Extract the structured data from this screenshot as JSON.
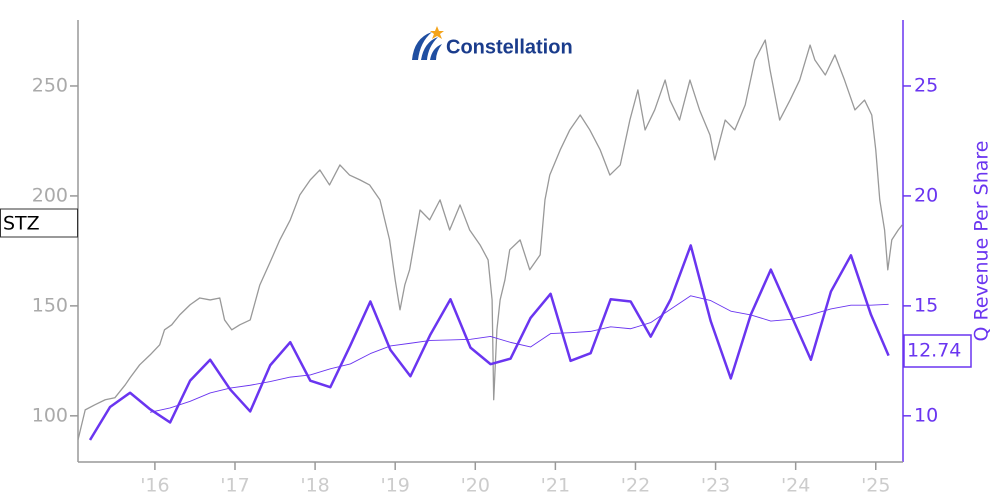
{
  "logo_text": "Constellation",
  "chart_data": {
    "type": "line",
    "ylabel": null,
    "y2label": "Q Revenue Per Share",
    "xlim": [
      2015.04,
      2025.34
    ],
    "xticks": [
      {
        "value": 2016,
        "label": "'16"
      },
      {
        "value": 2017,
        "label": "'17"
      },
      {
        "value": 2018,
        "label": "'18"
      },
      {
        "value": 2019,
        "label": "'19"
      },
      {
        "value": 2020,
        "label": "'20"
      },
      {
        "value": 2021,
        "label": "'21"
      },
      {
        "value": 2022,
        "label": "'22"
      },
      {
        "value": 2023,
        "label": "'23"
      },
      {
        "value": 2024,
        "label": "'24"
      },
      {
        "value": 2025,
        "label": "'25"
      }
    ],
    "ylim": [
      79,
      280
    ],
    "yticks": [
      100,
      150,
      200,
      250
    ],
    "y2lim": [
      7.9,
      28
    ],
    "y2ticks": [
      10,
      15,
      20,
      25
    ],
    "series": [
      {
        "name": "STZ",
        "color": "#999999",
        "axis": "y",
        "x": [
          2015.04,
          2015.13,
          2015.25,
          2015.38,
          2015.5,
          2015.63,
          2015.69,
          2015.81,
          2015.94,
          2016.06,
          2016.12,
          2016.21,
          2016.31,
          2016.44,
          2016.56,
          2016.69,
          2016.81,
          2016.87,
          2016.96,
          2017.06,
          2017.19,
          2017.31,
          2017.44,
          2017.56,
          2017.69,
          2017.81,
          2017.94,
          2018.06,
          2018.18,
          2018.31,
          2018.43,
          2018.56,
          2018.68,
          2018.81,
          2018.93,
          2019.0,
          2019.06,
          2019.12,
          2019.18,
          2019.31,
          2019.43,
          2019.56,
          2019.68,
          2019.81,
          2019.93,
          2020.06,
          2020.16,
          2020.21,
          2020.23,
          2020.27,
          2020.31,
          2020.37,
          2020.43,
          2020.56,
          2020.68,
          2020.81,
          2020.87,
          2020.93,
          2021.06,
          2021.18,
          2021.31,
          2021.43,
          2021.56,
          2021.68,
          2021.81,
          2021.93,
          2022.03,
          2022.12,
          2022.24,
          2022.37,
          2022.43,
          2022.55,
          2022.68,
          2022.8,
          2022.93,
          2022.99,
          2023.12,
          2023.24,
          2023.37,
          2023.49,
          2023.62,
          2023.68,
          2023.8,
          2023.93,
          2024.05,
          2024.18,
          2024.24,
          2024.37,
          2024.49,
          2024.61,
          2024.74,
          2024.86,
          2024.95,
          2025.0,
          2025.05,
          2025.11,
          2025.15,
          2025.2,
          2025.28,
          2025.33
        ],
        "values": [
          89.1,
          102.7,
          105,
          107.3,
          108.2,
          114.1,
          117.3,
          123.2,
          127.7,
          132.3,
          139.1,
          141.4,
          145.9,
          150.5,
          153.6,
          152.7,
          153.6,
          143.6,
          139.1,
          141.4,
          143.6,
          159.5,
          170,
          180,
          189.1,
          200.5,
          207.3,
          211.8,
          205,
          214.1,
          209.5,
          207.3,
          205,
          198.2,
          180,
          161.8,
          148.2,
          159.5,
          166.4,
          193.6,
          189.1,
          198.2,
          184.5,
          195.9,
          184.5,
          177.7,
          170.9,
          152.7,
          107.3,
          139.1,
          152.7,
          161.8,
          175.5,
          180,
          166.4,
          173.2,
          198.2,
          209.5,
          220.9,
          230,
          236.8,
          230,
          220.9,
          209.5,
          214.1,
          234.5,
          248.2,
          230,
          239.1,
          252.7,
          243.6,
          234.5,
          252.7,
          239.1,
          227.7,
          216.4,
          234.5,
          230,
          241.4,
          261.8,
          270.9,
          257.3,
          234.5,
          243.6,
          252.7,
          268.6,
          261.8,
          255,
          264.1,
          252.7,
          239.1,
          243.6,
          236.8,
          220.9,
          198.2,
          184.5,
          166.4,
          180,
          184.5,
          186.8
        ]
      },
      {
        "color": "#6a35f0",
        "axis": "y2",
        "x": [
          2015.19,
          2015.44,
          2015.69,
          2015.94,
          2016.19,
          2016.44,
          2016.69,
          2016.94,
          2017.19,
          2017.44,
          2017.69,
          2017.94,
          2018.19,
          2018.44,
          2018.69,
          2018.94,
          2019.19,
          2019.44,
          2019.69,
          2019.94,
          2020.19,
          2020.44,
          2020.69,
          2020.94,
          2021.19,
          2021.44,
          2021.69,
          2021.94,
          2022.19,
          2022.44,
          2022.69,
          2022.94,
          2023.19,
          2023.44,
          2023.69,
          2023.94,
          2024.19,
          2024.44,
          2024.69,
          2024.94,
          2025.16
        ],
        "values": [
          8.9,
          10.4,
          11.05,
          10.3,
          9.7,
          11.6,
          12.55,
          11.2,
          10.2,
          12.3,
          13.35,
          11.6,
          11.3,
          13.2,
          15.2,
          13.0,
          11.8,
          13.7,
          15.3,
          13.1,
          12.35,
          12.6,
          14.45,
          15.55,
          12.5,
          12.85,
          15.3,
          15.2,
          13.6,
          15.3,
          17.75,
          14.3,
          11.7,
          14.6,
          16.65,
          14.6,
          12.55,
          15.65,
          17.3,
          14.6,
          12.74
        ]
      },
      {
        "color": "#6a35f0",
        "axis": "y2",
        "x": [
          2015.19,
          2015.44,
          2015.69,
          2015.94,
          2016.19,
          2016.44,
          2016.69,
          2016.94,
          2017.19,
          2017.44,
          2017.69,
          2017.94,
          2018.19,
          2018.44,
          2018.69,
          2018.94,
          2019.19,
          2019.44,
          2019.69,
          2019.94,
          2020.19,
          2020.44,
          2020.69,
          2020.94,
          2021.19,
          2021.44,
          2021.69,
          2021.94,
          2022.19,
          2022.44,
          2022.69,
          2022.94,
          2023.19,
          2023.44,
          2023.69,
          2023.94,
          2024.19,
          2024.44,
          2024.69,
          2024.94,
          2025.16
        ],
        "values": [
          null,
          null,
          null,
          10.16,
          10.36,
          10.66,
          11.04,
          11.26,
          11.39,
          11.56,
          11.76,
          11.86,
          12.14,
          12.36,
          12.83,
          13.18,
          13.3,
          13.43,
          13.45,
          13.48,
          13.61,
          13.34,
          13.13,
          13.74,
          13.78,
          13.84,
          14.05,
          13.96,
          14.24,
          14.85,
          15.46,
          15.24,
          14.76,
          14.59,
          14.31,
          14.39,
          14.6,
          14.86,
          15.03,
          15.03,
          15.07
        ]
      }
    ]
  }
}
